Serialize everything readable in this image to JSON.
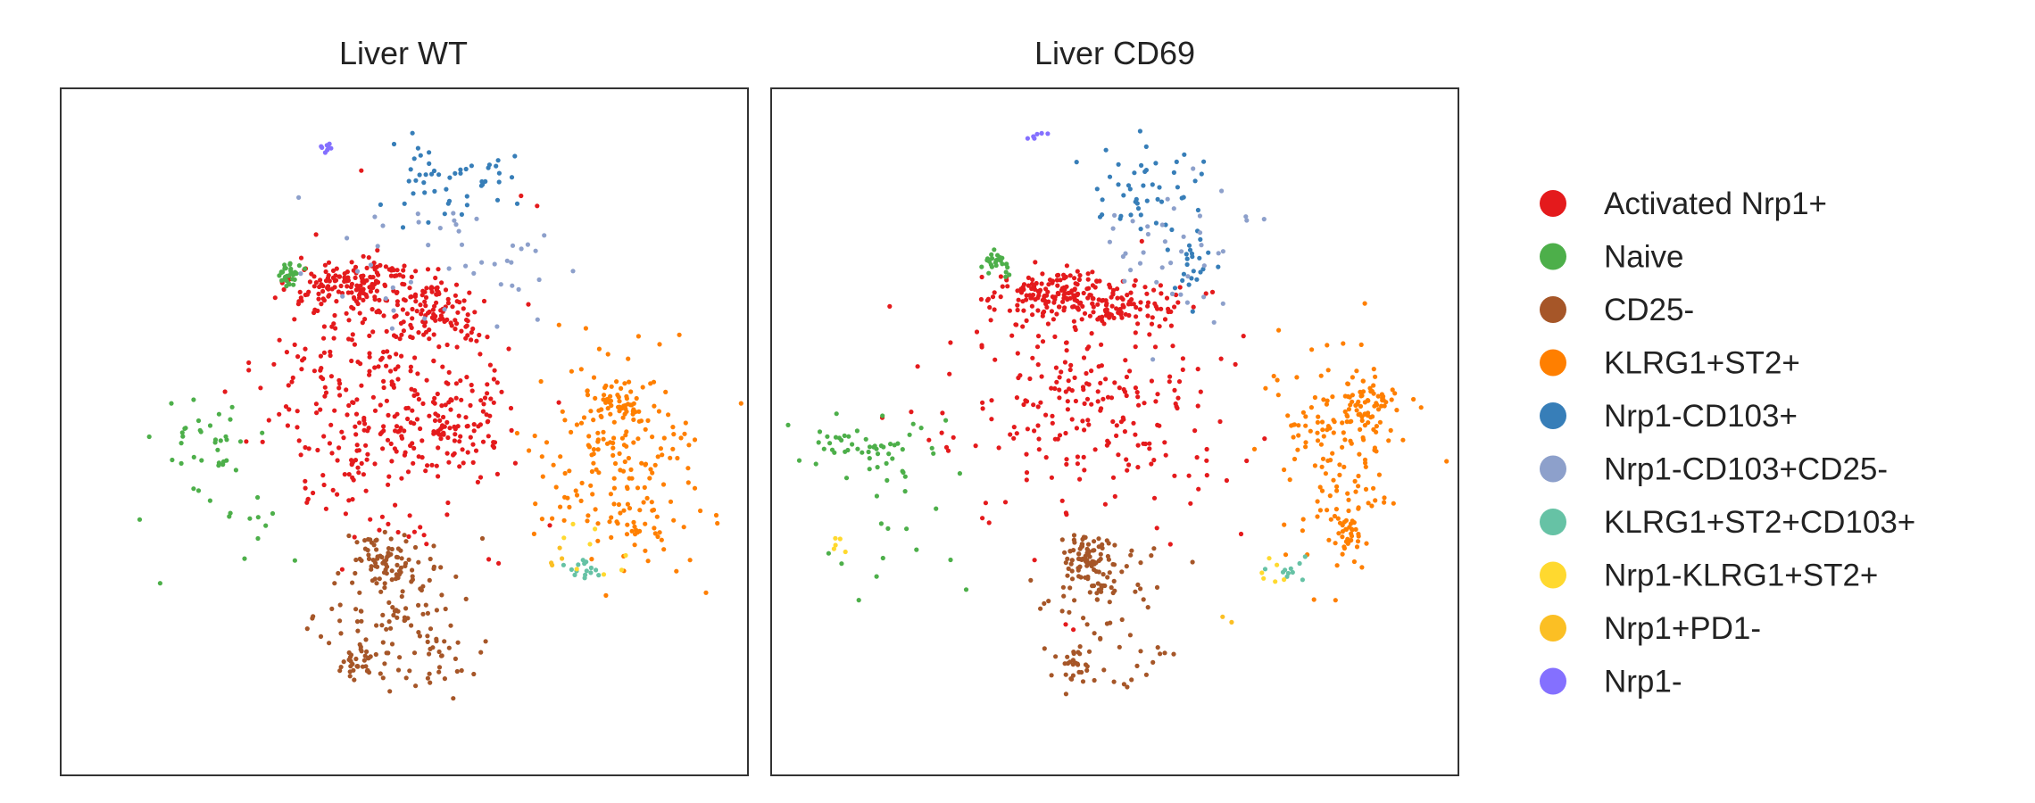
{
  "chart_data": {
    "type": "scatter",
    "xlabel": "",
    "ylabel": "",
    "xlim": [
      0,
      100
    ],
    "ylim": [
      0,
      100
    ],
    "grid": false,
    "axis_ticks": false,
    "legend_placement": "right",
    "categories": [
      {
        "label": "Activated Nrp1+",
        "color": "#e41a1c"
      },
      {
        "label": "Naive",
        "color": "#4daf4a"
      },
      {
        "label": "CD25-",
        "color": "#a65628"
      },
      {
        "label": "KLRG1+ST2+",
        "color": "#ff7f00"
      },
      {
        "label": "Nrp1-CD103+",
        "color": "#377eb8"
      },
      {
        "label": "Nrp1-CD103+CD25-",
        "color": "#8da0cb"
      },
      {
        "label": "KLRG1+ST2+CD103+",
        "color": "#66c2a5"
      },
      {
        "label": "Nrp1-KLRG1+ST2+",
        "color": "#ffd92f"
      },
      {
        "label": "Nrp1+PD1-",
        "color": "#fbbf24"
      },
      {
        "label": "Nrp1-",
        "color": "#8470ff"
      }
    ],
    "panels": [
      {
        "title": "Liver WT",
        "clusters": [
          {
            "category": "Activated Nrp1+",
            "x": 43,
            "y": 71,
            "sx": 5,
            "sy": 2.2,
            "n": 160
          },
          {
            "category": "Activated Nrp1+",
            "x": 55,
            "y": 67,
            "sx": 3,
            "sy": 2.5,
            "n": 90
          },
          {
            "category": "Activated Nrp1+",
            "x": 57,
            "y": 51,
            "sx": 3,
            "sy": 3,
            "n": 70
          },
          {
            "category": "Activated Nrp1+",
            "x": 47,
            "y": 55,
            "sx": 9,
            "sy": 10,
            "n": 300
          },
          {
            "category": "Activated Nrp1+",
            "x": 42,
            "y": 45,
            "sx": 2,
            "sy": 2,
            "n": 20
          },
          {
            "category": "Naive",
            "x": 33,
            "y": 73,
            "sx": 0.8,
            "sy": 0.8,
            "n": 30
          },
          {
            "category": "Naive",
            "x": 20,
            "y": 49,
            "sx": 3,
            "sy": 2.5,
            "n": 30
          },
          {
            "category": "Naive",
            "x": 26,
            "y": 38,
            "sx": 5,
            "sy": 5,
            "n": 18
          },
          {
            "category": "CD25-",
            "x": 47,
            "y": 31,
            "sx": 2,
            "sy": 2,
            "n": 60
          },
          {
            "category": "CD25-",
            "x": 49,
            "y": 26,
            "sx": 5,
            "sy": 5,
            "n": 90
          },
          {
            "category": "CD25-",
            "x": 44,
            "y": 16,
            "sx": 1.2,
            "sy": 1.2,
            "n": 30
          },
          {
            "category": "CD25-",
            "x": 52,
            "y": 18,
            "sx": 5,
            "sy": 3,
            "n": 40
          },
          {
            "category": "KLRG1+ST2+",
            "x": 82,
            "y": 55,
            "sx": 2,
            "sy": 2,
            "n": 40
          },
          {
            "category": "KLRG1+ST2+",
            "x": 81,
            "y": 47,
            "sx": 6,
            "sy": 8,
            "n": 180
          },
          {
            "category": "KLRG1+ST2+",
            "x": 85,
            "y": 36,
            "sx": 2,
            "sy": 2,
            "n": 20
          },
          {
            "category": "Nrp1-CD103+",
            "x": 56,
            "y": 87,
            "sx": 5,
            "sy": 3,
            "n": 50
          },
          {
            "category": "Nrp1-CD103+CD25-",
            "x": 56,
            "y": 76,
            "sx": 9,
            "sy": 5,
            "n": 45
          },
          {
            "category": "KLRG1+ST2+CD103+",
            "x": 76,
            "y": 30,
            "sx": 1.2,
            "sy": 0.8,
            "n": 15
          },
          {
            "category": "Nrp1-KLRG1+ST2+",
            "x": 77,
            "y": 33,
            "sx": 3,
            "sy": 2,
            "n": 8
          },
          {
            "category": "Nrp1+PD1-",
            "x": 72,
            "y": 31,
            "sx": 1,
            "sy": 1,
            "n": 4
          },
          {
            "category": "Nrp1-",
            "x": 38.5,
            "y": 91.5,
            "sx": 0.5,
            "sy": 0.5,
            "n": 8
          }
        ]
      },
      {
        "title": "Liver CD69",
        "clusters": [
          {
            "category": "Activated Nrp1+",
            "x": 42,
            "y": 70,
            "sx": 5,
            "sy": 2,
            "n": 170
          },
          {
            "category": "Activated Nrp1+",
            "x": 52,
            "y": 68,
            "sx": 4,
            "sy": 2,
            "n": 70
          },
          {
            "category": "Activated Nrp1+",
            "x": 47,
            "y": 54,
            "sx": 11,
            "sy": 8,
            "n": 230
          },
          {
            "category": "Naive",
            "x": 33,
            "y": 74.5,
            "sx": 0.8,
            "sy": 0.8,
            "n": 25
          },
          {
            "category": "Naive",
            "x": 13,
            "y": 48,
            "sx": 5,
            "sy": 2,
            "n": 50
          },
          {
            "category": "Naive",
            "x": 14,
            "y": 37,
            "sx": 6,
            "sy": 6,
            "n": 18
          },
          {
            "category": "CD25-",
            "x": 46,
            "y": 32,
            "sx": 1.5,
            "sy": 1.5,
            "n": 70
          },
          {
            "category": "CD25-",
            "x": 48,
            "y": 28,
            "sx": 4,
            "sy": 3,
            "n": 60
          },
          {
            "category": "CD25-",
            "x": 44,
            "y": 16,
            "sx": 1.2,
            "sy": 1.2,
            "n": 25
          },
          {
            "category": "CD25-",
            "x": 52,
            "y": 17,
            "sx": 5,
            "sy": 3,
            "n": 25
          },
          {
            "category": "KLRG1+ST2+",
            "x": 86,
            "y": 54,
            "sx": 2.5,
            "sy": 2,
            "n": 60
          },
          {
            "category": "KLRG1+ST2+",
            "x": 83,
            "y": 46,
            "sx": 5,
            "sy": 8,
            "n": 140
          },
          {
            "category": "KLRG1+ST2+",
            "x": 84,
            "y": 35,
            "sx": 1.2,
            "sy": 1.2,
            "n": 30
          },
          {
            "category": "Nrp1-CD103+",
            "x": 54,
            "y": 86,
            "sx": 5,
            "sy": 3,
            "n": 45
          },
          {
            "category": "Nrp1-CD103+",
            "x": 61,
            "y": 75,
            "sx": 2,
            "sy": 3,
            "n": 25
          },
          {
            "category": "Nrp1-CD103+CD25-",
            "x": 60,
            "y": 76,
            "sx": 7,
            "sy": 5,
            "n": 40
          },
          {
            "category": "KLRG1+ST2+CD103+",
            "x": 75,
            "y": 30,
            "sx": 1.5,
            "sy": 1,
            "n": 10
          },
          {
            "category": "Nrp1-KLRG1+ST2+",
            "x": 74,
            "y": 29,
            "sx": 2,
            "sy": 1,
            "n": 6
          },
          {
            "category": "Nrp1-KLRG1+ST2+",
            "x": 10,
            "y": 34,
            "sx": 1,
            "sy": 0.8,
            "n": 5
          },
          {
            "category": "Nrp1+PD1-",
            "x": 66,
            "y": 22,
            "sx": 0.5,
            "sy": 0.5,
            "n": 2
          },
          {
            "category": "Nrp1-",
            "x": 39,
            "y": 93,
            "sx": 1,
            "sy": 0.8,
            "n": 6
          }
        ]
      }
    ]
  }
}
